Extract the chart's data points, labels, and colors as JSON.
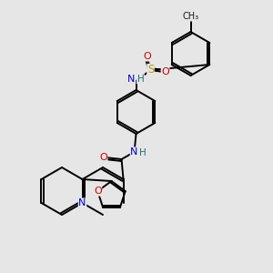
{
  "background_color": "#e6e6e6",
  "atom_colors": {
    "C": "#1a1a1a",
    "N": "#0000cc",
    "O": "#cc0000",
    "S": "#b8960c",
    "H": "#207070"
  },
  "figsize": [
    3.0,
    3.0
  ],
  "dpi": 100
}
